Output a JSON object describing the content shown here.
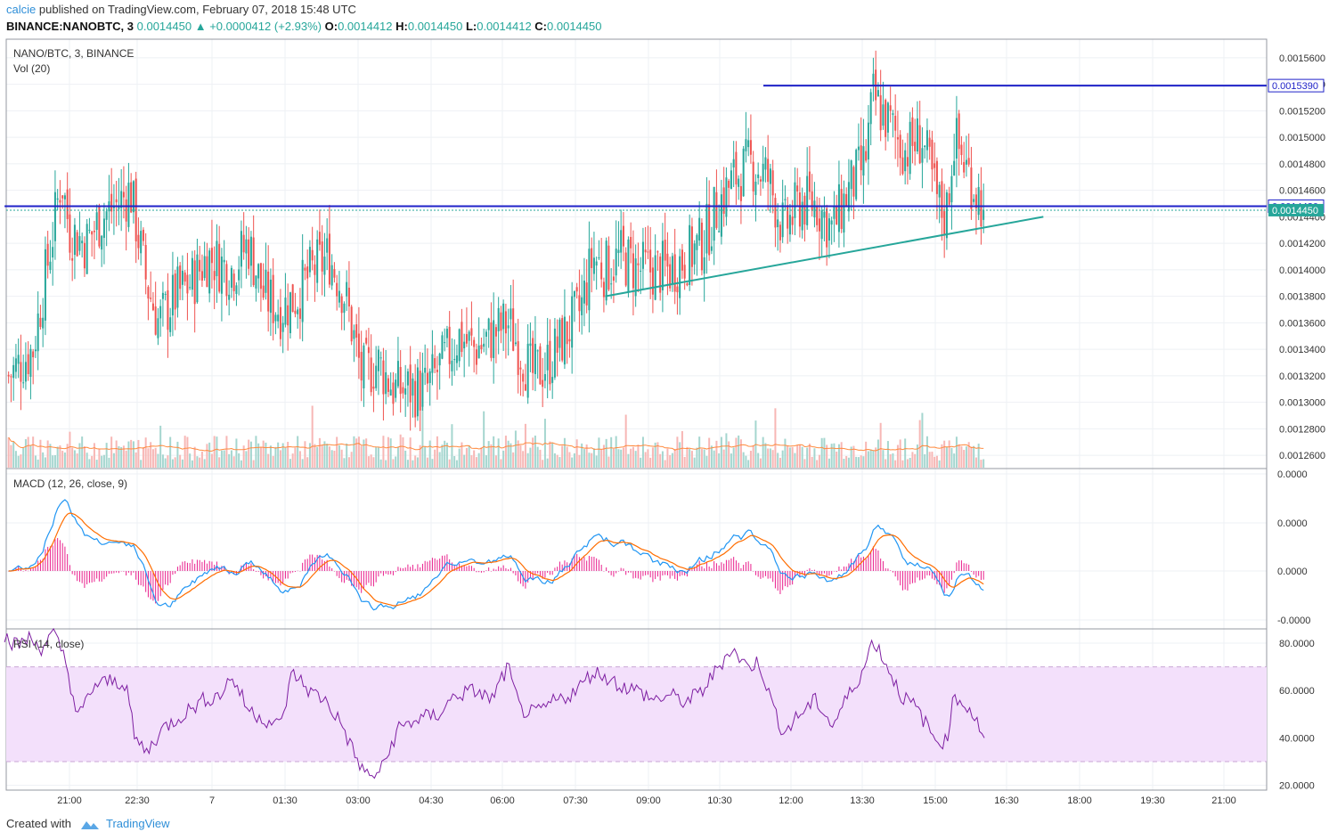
{
  "header": {
    "user": "calcie",
    "published_text": "published on TradingView.com, February 07, 2018 15:48 UTC",
    "symbol": "BINANCE:NANOBTC, 3",
    "last": "0.0014450",
    "change_arrow": "▲",
    "change": "+0.0000412 (+2.93%)",
    "o_label": "O:",
    "o_value": "0.0014412",
    "h_label": "H:",
    "h_value": "0.0014450",
    "l_label": "L:",
    "l_value": "0.0014412",
    "c_label": "C:",
    "c_value": "0.0014450"
  },
  "footer": {
    "created_with": "Created with",
    "brand": "TradingView"
  },
  "colors": {
    "up": "#26a69a",
    "down": "#ef5350",
    "up_vol": "#a5d6cf",
    "down_vol": "#f7b7b5",
    "blue_line": "#1f22c8",
    "trend_line": "#26a69a",
    "macd": "#2196f3",
    "signal": "#ff6d00",
    "hist": "#e91e8c",
    "rsi": "#7e1fa2",
    "rsi_band": "#f3e0fb",
    "grid": "#eef1f4"
  },
  "chart_data": [
    {
      "type": "candlestick",
      "title": "NANO/BTC, 3, BINANCE",
      "volume_label": "Vol (20)",
      "ylim": [
        0.00125,
        0.00157
      ],
      "y_ticks": [
        "0.0015600",
        "0.0015400",
        "0.0015200",
        "0.0015000",
        "0.0014800",
        "0.0014600",
        "0.0014400",
        "0.0014200",
        "0.0014000",
        "0.0013800",
        "0.0013600",
        "0.0013400",
        "0.0013200",
        "0.0013000",
        "0.0012800",
        "0.0012600"
      ],
      "x_ticks": [
        "21:00",
        "22:30",
        "7",
        "01:30",
        "03:00",
        "04:30",
        "06:00",
        "07:30",
        "09:00",
        "10:30",
        "12:00",
        "13:30",
        "15:00",
        "16:30",
        "18:00",
        "19:30",
        "21:00"
      ],
      "close_path": [
        [
          "19:45",
          0.00132
        ],
        [
          "20:15",
          0.00134
        ],
        [
          "20:40",
          0.00143
        ],
        [
          "20:50",
          0.00147
        ],
        [
          "21:00",
          0.00143
        ],
        [
          "21:20",
          0.00142
        ],
        [
          "21:40",
          0.00144
        ],
        [
          "22:00",
          0.00145
        ],
        [
          "22:15",
          0.00146
        ],
        [
          "22:35",
          0.00139
        ],
        [
          "22:50",
          0.00136
        ],
        [
          "23:10",
          0.00138
        ],
        [
          "23:30",
          0.00139
        ],
        [
          "23:50",
          0.00141
        ],
        [
          "00:20",
          0.0014
        ],
        [
          "00:40",
          0.00142
        ],
        [
          "01:00",
          0.00138
        ],
        [
          "01:20",
          0.00137
        ],
        [
          "01:40",
          0.00138
        ],
        [
          "02:00",
          0.0014
        ],
        [
          "02:20",
          0.00141
        ],
        [
          "02:40",
          0.00138
        ],
        [
          "03:00",
          0.00132
        ],
        [
          "03:20",
          0.00133
        ],
        [
          "03:40",
          0.00131
        ],
        [
          "04:00",
          0.00131
        ],
        [
          "04:20",
          0.00131
        ],
        [
          "04:40",
          0.00133
        ],
        [
          "05:00",
          0.00135
        ],
        [
          "05:20",
          0.00134
        ],
        [
          "05:40",
          0.00135
        ],
        [
          "06:00",
          0.00136
        ],
        [
          "06:15",
          0.00134
        ],
        [
          "06:30",
          0.00132
        ],
        [
          "06:50",
          0.00133
        ],
        [
          "07:10",
          0.00135
        ],
        [
          "07:30",
          0.00137
        ],
        [
          "07:45",
          0.00141
        ],
        [
          "08:00",
          0.0014
        ],
        [
          "08:20",
          0.00141
        ],
        [
          "08:40",
          0.0014
        ],
        [
          "09:00",
          0.0014
        ],
        [
          "09:20",
          0.0014
        ],
        [
          "09:40",
          0.00141
        ],
        [
          "10:00",
          0.00142
        ],
        [
          "10:20",
          0.00145
        ],
        [
          "10:40",
          0.00147
        ],
        [
          "11:00",
          0.00148
        ],
        [
          "11:20",
          0.00147
        ],
        [
          "11:40",
          0.00143
        ],
        [
          "12:00",
          0.00145
        ],
        [
          "12:20",
          0.00145
        ],
        [
          "12:40",
          0.00143
        ],
        [
          "13:00",
          0.00146
        ],
        [
          "13:20",
          0.00148
        ],
        [
          "13:30",
          0.00153
        ],
        [
          "13:50",
          0.00151
        ],
        [
          "14:10",
          0.00149
        ],
        [
          "14:30",
          0.0015
        ],
        [
          "14:50",
          0.00145
        ],
        [
          "15:00",
          0.00144
        ],
        [
          "15:10",
          0.0015
        ],
        [
          "15:30",
          0.00147
        ],
        [
          "15:48",
          0.001445
        ]
      ],
      "horizontal_levels": [
        {
          "value": 0.001539,
          "label": "0.0015390",
          "from": "11:15"
        },
        {
          "value": 0.001448,
          "label": "0.0014480",
          "from": "19:40"
        }
      ],
      "last_price": {
        "value": 0.001445,
        "label": "0.0014450"
      },
      "trend_line": {
        "from": [
          "08:00",
          0.00138
        ],
        "to": [
          "17:00",
          0.00144
        ]
      }
    },
    {
      "type": "line",
      "title": "MACD (12, 26, close, 9)",
      "y_ticks": [
        "0.0000",
        "0.0000",
        "0.0000",
        "-0.0000"
      ],
      "series": [
        {
          "name": "MACD"
        },
        {
          "name": "Signal"
        },
        {
          "name": "Histogram"
        }
      ]
    },
    {
      "type": "line",
      "title": "RSI (14, close)",
      "ylim": [
        18,
        86
      ],
      "y_ticks": [
        "80.0000",
        "60.0000",
        "40.0000",
        "20.0000"
      ],
      "bands": [
        70,
        30
      ],
      "rsi_path": [
        [
          "19:40",
          83
        ],
        [
          "19:55",
          79
        ],
        [
          "20:10",
          82
        ],
        [
          "20:25",
          78
        ],
        [
          "20:40",
          84
        ],
        [
          "20:55",
          73
        ],
        [
          "21:10",
          48
        ],
        [
          "21:30",
          62
        ],
        [
          "21:50",
          64
        ],
        [
          "22:10",
          63
        ],
        [
          "22:20",
          40
        ],
        [
          "22:35",
          34
        ],
        [
          "22:55",
          44
        ],
        [
          "23:20",
          50
        ],
        [
          "23:45",
          56
        ],
        [
          "00:05",
          58
        ],
        [
          "00:20",
          66
        ],
        [
          "00:40",
          52
        ],
        [
          "01:00",
          48
        ],
        [
          "01:20",
          45
        ],
        [
          "01:35",
          68
        ],
        [
          "01:55",
          60
        ],
        [
          "02:15",
          56
        ],
        [
          "02:35",
          46
        ],
        [
          "02:55",
          30
        ],
        [
          "03:10",
          23
        ],
        [
          "03:25",
          27
        ],
        [
          "03:45",
          44
        ],
        [
          "04:10",
          48
        ],
        [
          "04:35",
          50
        ],
        [
          "04:55",
          58
        ],
        [
          "05:20",
          60
        ],
        [
          "05:40",
          56
        ],
        [
          "06:00",
          70
        ],
        [
          "06:15",
          52
        ],
        [
          "06:35",
          50
        ],
        [
          "06:55",
          55
        ],
        [
          "07:15",
          58
        ],
        [
          "07:30",
          62
        ],
        [
          "07:45",
          68
        ],
        [
          "08:00",
          66
        ],
        [
          "08:20",
          62
        ],
        [
          "08:40",
          60
        ],
        [
          "09:00",
          56
        ],
        [
          "09:20",
          58
        ],
        [
          "09:40",
          55
        ],
        [
          "10:00",
          60
        ],
        [
          "10:20",
          70
        ],
        [
          "10:35",
          78
        ],
        [
          "10:55",
          70
        ],
        [
          "11:10",
          72
        ],
        [
          "11:25",
          55
        ],
        [
          "11:40",
          42
        ],
        [
          "12:00",
          50
        ],
        [
          "12:20",
          56
        ],
        [
          "12:40",
          45
        ],
        [
          "13:00",
          58
        ],
        [
          "13:20",
          70
        ],
        [
          "13:30",
          82
        ],
        [
          "13:45",
          72
        ],
        [
          "14:05",
          58
        ],
        [
          "14:25",
          52
        ],
        [
          "14:45",
          40
        ],
        [
          "15:00",
          38
        ],
        [
          "15:10",
          58
        ],
        [
          "15:30",
          52
        ],
        [
          "15:48",
          40
        ]
      ]
    }
  ]
}
